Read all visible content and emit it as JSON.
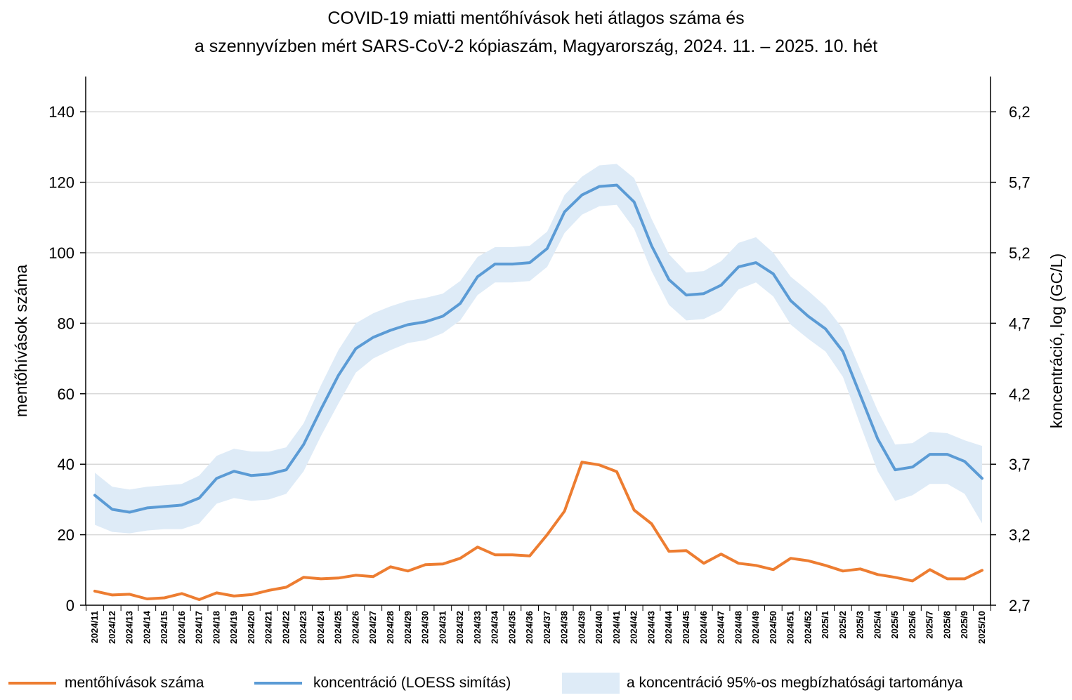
{
  "chart_data": {
    "type": "line",
    "title": "COVID-19 miatti mentőhívások heti átlagos száma és",
    "subtitle": "a szennyvízben mért SARS-CoV-2 kópiaszám, Magyarország, 2024. 11. – 2025. 10. hét",
    "ylabel": "mentőhívások száma",
    "y2label": "koncentráció, log (GC/L)",
    "ylim": [
      0,
      150
    ],
    "y2lim": [
      2.7,
      6.45
    ],
    "yticks": [
      "0",
      "20",
      "40",
      "60",
      "80",
      "100",
      "120",
      "140"
    ],
    "y2ticks": [
      "2,7",
      "3,2",
      "3,7",
      "4,2",
      "4,7",
      "5,2",
      "5,7",
      "6,2"
    ],
    "grid": true,
    "legend_position": "bottom",
    "categories": [
      "2024/11",
      "2024/12",
      "2024/13",
      "2024/14",
      "2024/15",
      "2024/16",
      "2024/17",
      "2024/18",
      "2024/19",
      "2024/20",
      "2024/21",
      "2024/22",
      "2024/23",
      "2024/24",
      "2024/25",
      "2024/26",
      "2024/27",
      "2024/28",
      "2024/29",
      "2024/30",
      "2024/31",
      "2024/32",
      "2024/33",
      "2024/34",
      "2024/35",
      "2024/36",
      "2024/37",
      "2024/38",
      "2024/39",
      "2024/40",
      "2024/41",
      "2024/42",
      "2024/43",
      "2024/44",
      "2024/45",
      "2024/46",
      "2024/47",
      "2024/48",
      "2024/49",
      "2024/50",
      "2024/51",
      "2024/52",
      "2025/1",
      "2025/2",
      "2025/3",
      "2025/4",
      "2025/5",
      "2025/6",
      "2025/7",
      "2025/8",
      "2025/9",
      "2025/10"
    ],
    "series": [
      {
        "name": "mentőhívások száma",
        "axis": "left",
        "color": "#ED7D31",
        "values": [
          4,
          2.9,
          3.1,
          1.8,
          2.1,
          3.3,
          1.6,
          3.5,
          2.6,
          3.0,
          4.2,
          5.1,
          7.9,
          7.5,
          7.7,
          8.5,
          8.1,
          10.9,
          9.7,
          11.5,
          11.7,
          13.3,
          16.5,
          14.3,
          14.3,
          14.0,
          20.0,
          26.7,
          40.6,
          39.8,
          37.9,
          27.0,
          23.1,
          15.3,
          15.5,
          11.9,
          14.5,
          11.9,
          11.3,
          10.1,
          13.3,
          12.6,
          11.3,
          9.7,
          10.3,
          8.7,
          7.9,
          6.9,
          10.1,
          7.5,
          7.5,
          9.9
        ]
      },
      {
        "name": "koncentráció (LOESS simítás)",
        "axis": "right",
        "color": "#5B9BD5",
        "values": [
          3.48,
          3.38,
          3.36,
          3.39,
          3.4,
          3.41,
          3.46,
          3.6,
          3.65,
          3.62,
          3.63,
          3.66,
          3.84,
          4.09,
          4.33,
          4.52,
          4.6,
          4.65,
          4.69,
          4.71,
          4.75,
          4.84,
          5.03,
          5.12,
          5.12,
          5.13,
          5.23,
          5.49,
          5.61,
          5.67,
          5.68,
          5.56,
          5.25,
          5.01,
          4.9,
          4.91,
          4.97,
          5.1,
          5.13,
          5.05,
          4.86,
          4.75,
          4.66,
          4.5,
          4.19,
          3.88,
          3.66,
          3.68,
          3.77,
          3.77,
          3.72,
          3.6
        ]
      }
    ],
    "band": {
      "name": "a koncentráció 95%-os megbízhatósági tartománya",
      "axis": "right",
      "color": "#DEEBF7",
      "lower": [
        3.27,
        3.22,
        3.21,
        3.23,
        3.24,
        3.24,
        3.28,
        3.42,
        3.46,
        3.44,
        3.45,
        3.49,
        3.65,
        3.9,
        4.13,
        4.35,
        4.45,
        4.51,
        4.56,
        4.58,
        4.63,
        4.72,
        4.9,
        4.99,
        4.99,
        5.0,
        5.1,
        5.34,
        5.47,
        5.53,
        5.54,
        5.37,
        5.07,
        4.83,
        4.72,
        4.73,
        4.79,
        4.94,
        4.99,
        4.89,
        4.69,
        4.59,
        4.5,
        4.32,
        3.98,
        3.65,
        3.44,
        3.48,
        3.56,
        3.56,
        3.49,
        3.28
      ],
      "upper": [
        3.64,
        3.54,
        3.52,
        3.54,
        3.55,
        3.56,
        3.62,
        3.76,
        3.81,
        3.79,
        3.79,
        3.82,
        3.99,
        4.26,
        4.51,
        4.7,
        4.77,
        4.82,
        4.86,
        4.88,
        4.91,
        5.0,
        5.17,
        5.24,
        5.24,
        5.25,
        5.35,
        5.61,
        5.74,
        5.82,
        5.83,
        5.73,
        5.44,
        5.19,
        5.06,
        5.07,
        5.14,
        5.27,
        5.31,
        5.2,
        5.03,
        4.93,
        4.82,
        4.66,
        4.37,
        4.08,
        3.84,
        3.85,
        3.93,
        3.92,
        3.87,
        3.83
      ]
    }
  },
  "legend": {
    "items": [
      {
        "label": "mentőhívások száma",
        "color": "#ED7D31"
      },
      {
        "label": "koncentráció (LOESS simítás)",
        "color": "#5B9BD5"
      },
      {
        "label": "a koncentráció 95%-os megbízhatósági tartománya",
        "color": "#DEEBF7"
      }
    ]
  }
}
